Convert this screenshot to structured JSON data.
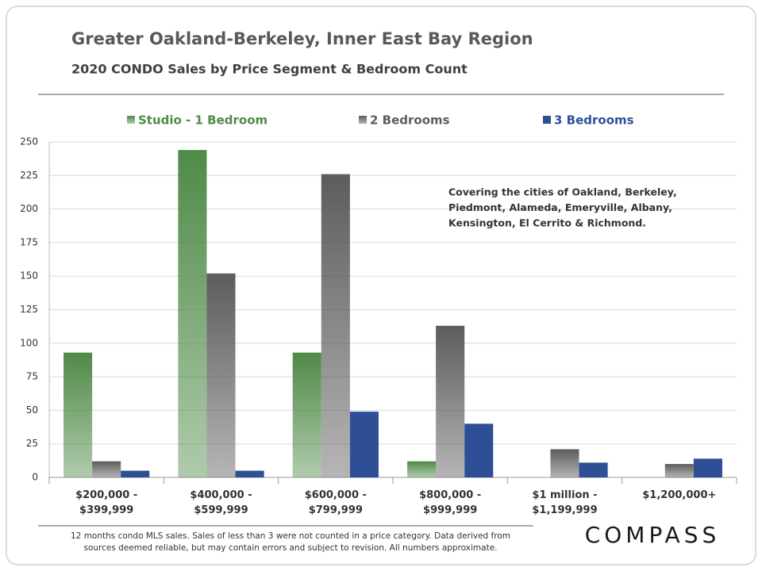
{
  "chart_data": {
    "type": "bar",
    "title": "Greater Oakland-Berkeley, Inner East Bay Region",
    "subtitle": "2020 CONDO Sales by Price Segment & Bedroom Count",
    "categories": [
      "$200,000 -\n$399,999",
      "$400,000 -\n$599,999",
      "$600,000 -\n$799,999",
      "$800,000 -\n$999,999",
      "$1 million -\n$1,199,999",
      "$1,200,000+"
    ],
    "series": [
      {
        "name": "Studio - 1 Bedroom",
        "color": "#4f8a47",
        "fill_style": "gradient",
        "values": [
          93,
          244,
          93,
          12,
          0,
          0
        ]
      },
      {
        "name": "2 Bedrooms",
        "color": "#5c5c5c",
        "fill_style": "gradient",
        "values": [
          12,
          152,
          226,
          113,
          21,
          10
        ]
      },
      {
        "name": "3 Bedrooms",
        "color": "#2e4f96",
        "fill_style": "solid",
        "values": [
          5,
          5,
          49,
          40,
          11,
          14
        ]
      }
    ],
    "ylim": [
      0,
      250
    ],
    "yticks": [
      0,
      25,
      50,
      75,
      100,
      125,
      150,
      175,
      200,
      225,
      250
    ],
    "grid": true,
    "legend": "top",
    "annotation": [
      "Covering the cities of Oakland, Berkeley,",
      "Piedmont, Alameda, Emeryville, Albany,",
      "Kensington, El Cerrito & Richmond."
    ],
    "footnote": [
      "12 months condo MLS sales.  Sales of less than 3 were not counted in a price category. Data derived from",
      "sources deemed reliable, but may contain errors and subject to revision. All numbers approximate."
    ],
    "logo": "COMPASS"
  }
}
